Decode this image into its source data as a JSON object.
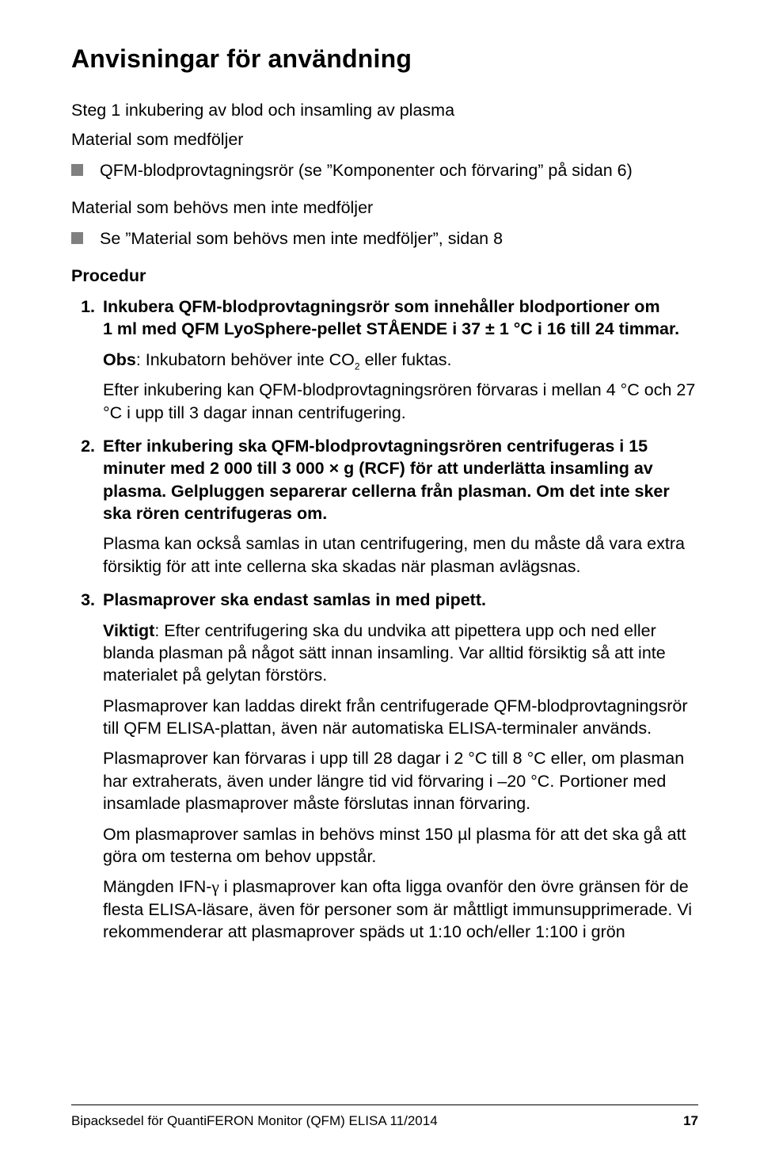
{
  "title": "Anvisningar för användning",
  "step_heading": "Steg 1 inkubering av blod och insamling av plasma",
  "materials_included_heading": "Material som medföljer",
  "materials_included_item": "QFM-blodprovtagningsrör (se ”Komponenter och förvaring” på sidan 6)",
  "materials_needed_heading": "Material som behövs men inte medföljer",
  "materials_needed_item": "Se ”Material som behövs men inte medföljer”, sidan 8",
  "procedure_heading": "Procedur",
  "proc": {
    "s1_lead": "Inkubera QFM-blodprovtagningsrör som innehåller blodportioner om 1 ml med QFM LyoSphere-pellet STÅENDE i 37 ± 1 °C i 16 till 24 timmar.",
    "s1_obs_label": "Obs",
    "s1_obs_body": ": Inkubatorn behöver inte CO",
    "s1_obs_tail": " eller fuktas.",
    "s1_p": "Efter inkubering kan QFM-blodprovtagningsrören förvaras i mellan 4 °C och 27 °C i upp till 3 dagar innan centrifugering.",
    "s2_lead": "Efter inkubering ska QFM-blodprovtagningsrören centrifugeras i 15 minuter med 2 000 till 3 000 × g (RCF) för att underlätta insamling av plasma. Gelpluggen separerar cellerna från plasman. Om det inte sker ska rören centrifugeras om.",
    "s2_p": "Plasma kan också samlas in utan centrifugering, men du måste då vara extra försiktig för att inte cellerna ska skadas när plasman avlägsnas.",
    "s3_lead": "Plasmaprover ska endast samlas in med pipett.",
    "s3_p1_label": "Viktigt",
    "s3_p1_body": ": Efter centrifugering ska du undvika att pipettera upp och ned eller blanda plasman på något sätt innan insamling. Var alltid försiktig så att inte materialet på gelytan förstörs.",
    "s3_p2": "Plasmaprover kan laddas direkt från centrifugerade QFM-blodprovtagnings­rör till QFM ELISA-plattan, även när automatiska ELISA-terminaler används.",
    "s3_p3": "Plasmaprover kan förvaras i upp till 28 dagar i 2 °C till 8 °C eller, om plasman har extraherats, även under längre tid vid förvaring i –20 °C. Portioner med insamlade plasmaprover måste förslutas innan förvaring.",
    "s3_p4": "Om plasmaprover samlas in behövs minst 150 µl plasma för att det ska gå att göra om testerna om behov uppstår.",
    "s3_p5a": "Mängden IFN-",
    "s3_p5b": " i plasmaprover kan ofta ligga ovanför den övre gränsen för de flesta ELISA-läsare, även för personer som är måttligt immunsupprimerade. Vi rekommenderar att plasmaprover späds ut 1:10 och/eller 1:100 i grön"
  },
  "footer_left": "Bipacksedel för QuantiFERON Monitor (QFM) ELISA   11/2014",
  "footer_page": "17"
}
